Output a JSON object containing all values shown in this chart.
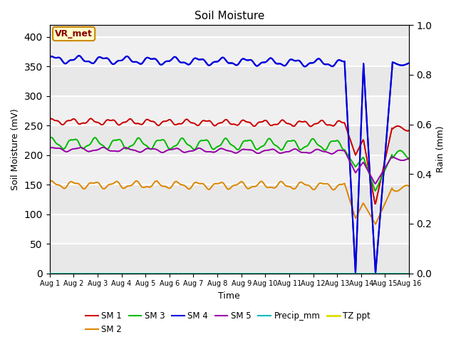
{
  "title": "Soil Moisture",
  "xlabel": "Time",
  "ylabel_left": "Soil Moisture (mV)",
  "ylabel_right": "Rain (mm)",
  "ylim_left": [
    0,
    420
  ],
  "ylim_right": [
    0.0,
    1.0
  ],
  "yticks_left": [
    0,
    50,
    100,
    150,
    200,
    250,
    300,
    350,
    400
  ],
  "yticks_right": [
    0.0,
    0.2,
    0.4,
    0.6,
    0.8,
    1.0
  ],
  "bg_color": "#e8e8e8",
  "bg_band_light": "#f0f0f0",
  "series_colors": {
    "SM1": "#cc0000",
    "SM2": "#dd8800",
    "SM3": "#00bb00",
    "SM4": "#0000dd",
    "SM5": "#9900aa",
    "Precip_mm": "#00bbbb",
    "TZ_ppt": "#dddd00"
  },
  "annotation_text": "VR_met",
  "annotation_bg": "#ffffcc",
  "annotation_border": "#cc8800",
  "annotation_text_color": "#880000",
  "n_points": 720,
  "sm4_base": 362,
  "sm1_base": 257,
  "sm3_base": 220,
  "sm5_base": 210,
  "sm2_base": 150
}
